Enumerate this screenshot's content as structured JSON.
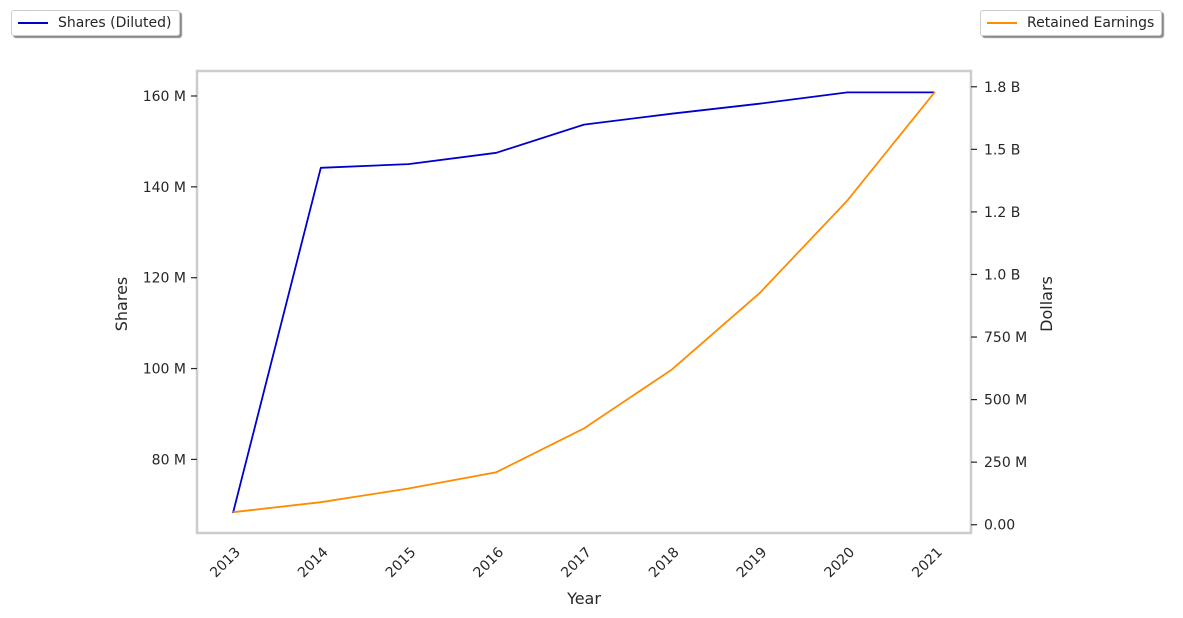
{
  "chart_data": {
    "type": "line",
    "title": "",
    "xlabel": "Year",
    "ylabel_left": "Shares",
    "ylabel_right": "Dollars",
    "x": [
      "2013",
      "2014",
      "2015",
      "2016",
      "2017",
      "2018",
      "2019",
      "2020",
      "2021"
    ],
    "series": [
      {
        "name": "Shares (Diluted)",
        "axis": "left",
        "color": "#0000cd",
        "values": [
          68200000,
          144200000,
          145000000,
          147500000,
          153700000,
          156100000,
          158300000,
          160800000,
          160800000
        ]
      },
      {
        "name": "Retained Earnings",
        "axis": "right",
        "color": "#ff8c00",
        "values": [
          50000000,
          90000000,
          145000000,
          210000000,
          385000000,
          620000000,
          925000000,
          1295000000,
          1730000000
        ]
      }
    ],
    "ylim_left": [
      63800000,
      165500000
    ],
    "ylim_right": [
      -33000000,
      1813000000
    ],
    "yticks_left": [
      {
        "value": 80000000,
        "label": "80 M"
      },
      {
        "value": 100000000,
        "label": "100 M"
      },
      {
        "value": 120000000,
        "label": "120 M"
      },
      {
        "value": 140000000,
        "label": "140 M"
      },
      {
        "value": 160000000,
        "label": "160 M"
      }
    ],
    "yticks_right": [
      {
        "value": 0,
        "label": "0.00"
      },
      {
        "value": 250000000,
        "label": "250 M"
      },
      {
        "value": 500000000,
        "label": "500 M"
      },
      {
        "value": 750000000,
        "label": "750 M"
      },
      {
        "value": 1000000000,
        "label": "1.0 B"
      },
      {
        "value": 1250000000,
        "label": "1.2 B"
      },
      {
        "value": 1500000000,
        "label": "1.5 B"
      },
      {
        "value": 1750000000,
        "label": "1.8 B"
      }
    ],
    "grid": false,
    "legend_left": {
      "label": "Shares (Diluted)",
      "placement": "top-left"
    },
    "legend_right": {
      "label": "Retained Earnings",
      "placement": "top-right"
    }
  }
}
